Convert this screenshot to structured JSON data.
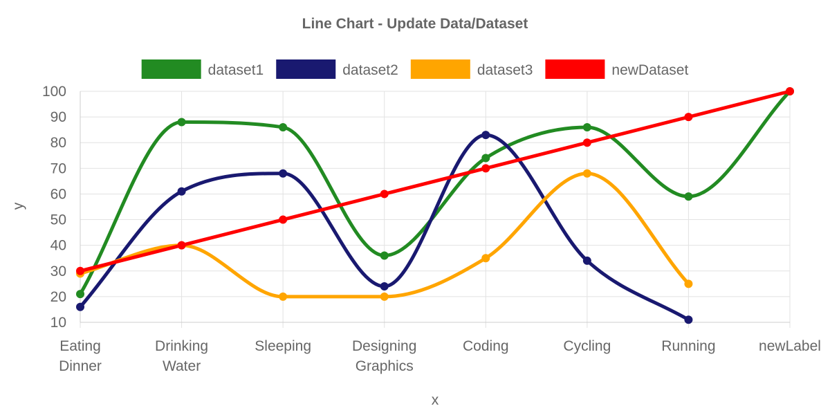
{
  "chart_data": {
    "type": "line",
    "title": "Line Chart - Update Data/Dataset",
    "xlabel": "x",
    "ylabel": "y",
    "categories": [
      [
        "Eating",
        "Dinner"
      ],
      [
        "Drinking",
        "Water"
      ],
      [
        "Sleeping"
      ],
      [
        "Designing",
        "Graphics"
      ],
      [
        "Coding"
      ],
      [
        "Cycling"
      ],
      [
        "Running"
      ],
      [
        "newLabel"
      ]
    ],
    "ylim": [
      10,
      100
    ],
    "yticks": [
      10,
      20,
      30,
      40,
      50,
      60,
      70,
      80,
      90,
      100
    ],
    "grid": true,
    "legend_position": "top",
    "series": [
      {
        "name": "dataset1",
        "color": "#228b22",
        "curve": "smooth",
        "values": [
          21,
          88,
          86,
          36,
          74,
          86,
          59,
          100
        ]
      },
      {
        "name": "dataset2",
        "color": "#191970",
        "curve": "smooth",
        "values": [
          16,
          61,
          68,
          24,
          83,
          34,
          11,
          null
        ]
      },
      {
        "name": "dataset3",
        "color": "#ffa500",
        "curve": "smooth",
        "values": [
          29,
          40,
          20,
          20,
          35,
          68,
          25,
          null
        ]
      },
      {
        "name": "newDataset",
        "color": "#ff0000",
        "curve": "straight",
        "values": [
          30,
          40,
          50,
          60,
          70,
          80,
          90,
          100
        ]
      }
    ]
  }
}
